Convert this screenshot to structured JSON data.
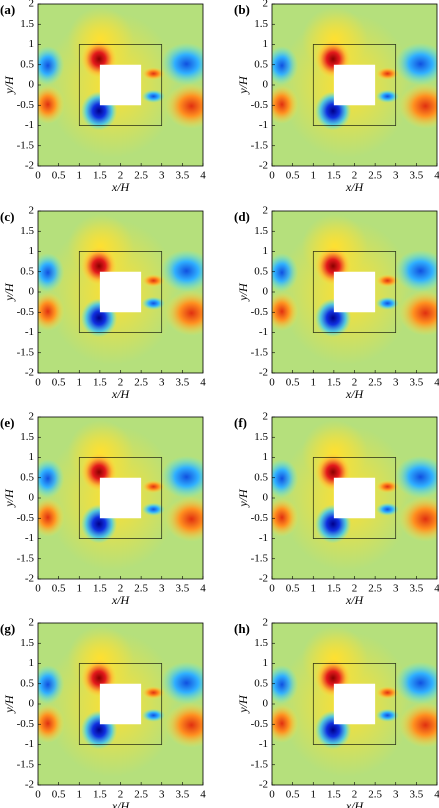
{
  "chart_data": [
    {
      "type": "contour",
      "label": "(a)",
      "xlabel": "x/H",
      "ylabel": "y/H",
      "xlim": [
        0,
        4
      ],
      "ylim": [
        -2,
        2
      ],
      "xticks": [
        0,
        0.5,
        1,
        1.5,
        2,
        2.5,
        3,
        3.5,
        4
      ],
      "yticks": [
        -2,
        -1.5,
        -1,
        -0.5,
        0,
        0.5,
        1,
        1.5,
        2
      ]
    },
    {
      "type": "contour",
      "label": "(b)",
      "xlabel": "x/H",
      "ylabel": "y/H",
      "xlim": [
        0,
        4
      ],
      "ylim": [
        -2,
        2
      ],
      "xticks": [
        0,
        0.5,
        1,
        1.5,
        2,
        2.5,
        3,
        3.5,
        4
      ],
      "yticks": [
        -2,
        -1.5,
        -1,
        -0.5,
        0,
        0.5,
        1,
        1.5,
        2
      ]
    },
    {
      "type": "contour",
      "label": "(c)",
      "xlabel": "x/H",
      "ylabel": "y/H",
      "xlim": [
        0,
        4
      ],
      "ylim": [
        -2,
        2
      ],
      "xticks": [
        0,
        0.5,
        1,
        1.5,
        2,
        2.5,
        3,
        3.5,
        4
      ],
      "yticks": [
        -2,
        -1.5,
        -1,
        -0.5,
        0,
        0.5,
        1,
        1.5,
        2
      ]
    },
    {
      "type": "contour",
      "label": "(d)",
      "xlabel": "x/H",
      "ylabel": "y/H",
      "xlim": [
        0,
        4
      ],
      "ylim": [
        -2,
        2
      ],
      "xticks": [
        0,
        0.5,
        1,
        1.5,
        2,
        2.5,
        3,
        3.5,
        4
      ],
      "yticks": [
        -2,
        -1.5,
        -1,
        -0.5,
        0,
        0.5,
        1,
        1.5,
        2
      ]
    },
    {
      "type": "contour",
      "label": "(e)",
      "xlabel": "x/H",
      "ylabel": "y/H",
      "xlim": [
        0,
        4
      ],
      "ylim": [
        -2,
        2
      ],
      "xticks": [
        0,
        0.5,
        1,
        1.5,
        2,
        2.5,
        3,
        3.5,
        4
      ],
      "yticks": [
        -2,
        -1.5,
        -1,
        -0.5,
        0,
        0.5,
        1,
        1.5,
        2
      ]
    },
    {
      "type": "contour",
      "label": "(f)",
      "xlabel": "x/H",
      "ylabel": "y/H",
      "xlim": [
        0,
        4
      ],
      "ylim": [
        -2,
        2
      ],
      "xticks": [
        0,
        0.5,
        1,
        1.5,
        2,
        2.5,
        3,
        3.5,
        4
      ],
      "yticks": [
        -2,
        -1.5,
        -1,
        -0.5,
        0,
        0.5,
        1,
        1.5,
        2
      ]
    },
    {
      "type": "contour",
      "label": "(g)",
      "xlabel": "x/H",
      "ylabel": "y/H",
      "xlim": [
        0,
        4
      ],
      "ylim": [
        -2,
        2
      ],
      "xticks": [
        0,
        0.5,
        1,
        1.5,
        2,
        2.5,
        3,
        3.5,
        4
      ],
      "yticks": [
        -2,
        -1.5,
        -1,
        -0.5,
        0,
        0.5,
        1,
        1.5,
        2
      ]
    },
    {
      "type": "contour",
      "label": "(h)",
      "xlabel": "x/H",
      "ylabel": "y/H",
      "xlim": [
        0,
        4
      ],
      "ylim": [
        -2,
        2
      ],
      "xticks": [
        0,
        0.5,
        1,
        1.5,
        2,
        2.5,
        3,
        3.5,
        4
      ],
      "yticks": [
        -2,
        -1.5,
        -1,
        -0.5,
        0,
        0.5,
        1,
        1.5,
        2
      ]
    }
  ]
}
